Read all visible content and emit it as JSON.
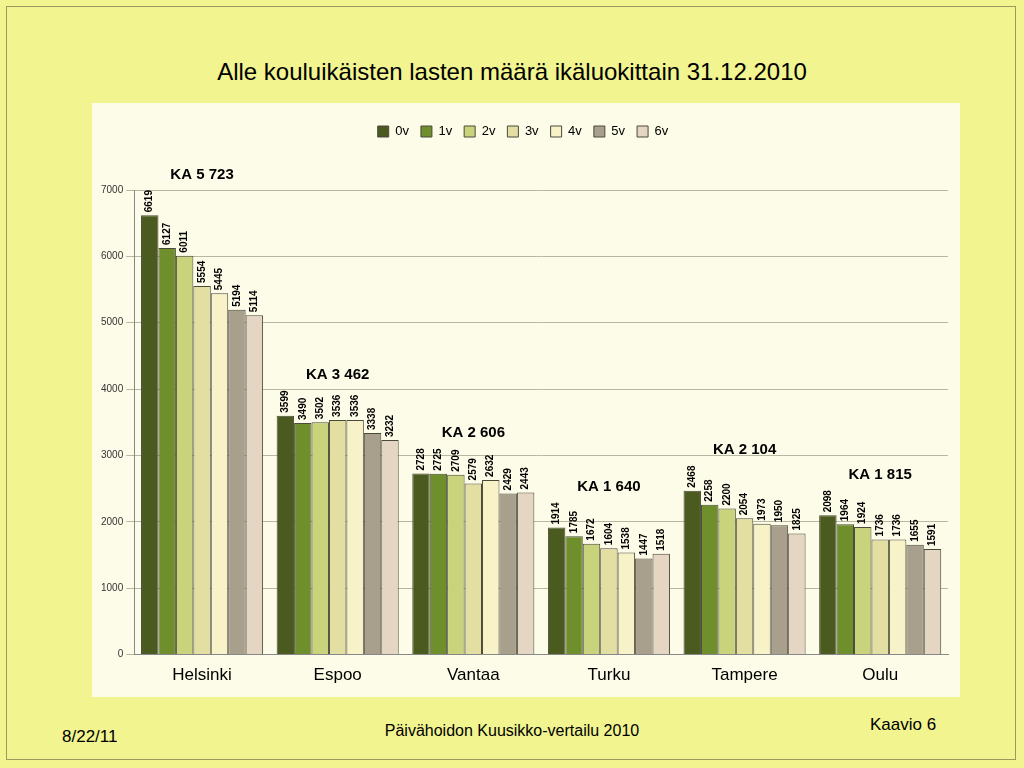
{
  "chart_data": {
    "type": "bar",
    "title": "Alle kouluikäisten lasten määrä ikäluokittain 31.12.2010",
    "categories": [
      "Helsinki",
      "Espoo",
      "Vantaa",
      "Turku",
      "Tampere",
      "Oulu"
    ],
    "series": [
      {
        "name": "0v",
        "color": "#4b5a1e",
        "values": [
          6619,
          3599,
          2728,
          1914,
          2468,
          2098
        ]
      },
      {
        "name": "1v",
        "color": "#6f8f2c",
        "values": [
          6127,
          3490,
          2725,
          1785,
          2258,
          1964
        ]
      },
      {
        "name": "2v",
        "color": "#c9d37c",
        "values": [
          6011,
          3502,
          2709,
          1672,
          2200,
          1924
        ]
      },
      {
        "name": "3v",
        "color": "#e3dfa2",
        "values": [
          5554,
          3536,
          2579,
          1604,
          2054,
          1736
        ]
      },
      {
        "name": "4v",
        "color": "#f8f2c8",
        "values": [
          5445,
          3536,
          2632,
          1538,
          1973,
          1736
        ]
      },
      {
        "name": "5v",
        "color": "#a99f8d",
        "values": [
          5194,
          3338,
          2429,
          1447,
          1950,
          1655
        ]
      },
      {
        "name": "6v",
        "color": "#e4d6c2",
        "values": [
          5114,
          3232,
          2443,
          1518,
          1825,
          1591
        ]
      }
    ],
    "ylim": [
      0,
      7000
    ],
    "yticks": [
      0,
      1000,
      2000,
      3000,
      4000,
      5000,
      6000,
      7000
    ],
    "grid": true,
    "legend": "top",
    "data_labels": true,
    "annotations": [
      {
        "category": "Helsinki",
        "text": "KA 5 723"
      },
      {
        "category": "Espoo",
        "text": "KA 3 462"
      },
      {
        "category": "Vantaa",
        "text": "KA 2 606"
      },
      {
        "category": "Turku",
        "text": "KA 1 640"
      },
      {
        "category": "Tampere",
        "text": "KA 2 104"
      },
      {
        "category": "Oulu",
        "text": "KA 1 815"
      }
    ]
  },
  "footer": {
    "date": "8/22/11",
    "source": "Päivähoidon Kuusikko-vertailu 2010",
    "label": "Kaavio 6"
  }
}
